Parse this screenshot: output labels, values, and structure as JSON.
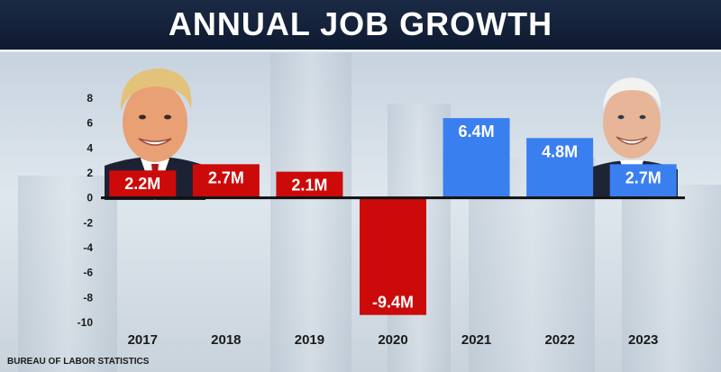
{
  "title": "ANNUAL JOB GROWTH",
  "source": "BUREAU OF LABOR STATISTICS",
  "colors": {
    "red": "#cc0a0a",
    "blue": "#3a7ff0",
    "header": "#14223b"
  },
  "icons": [
    "trump-portrait-icon",
    "biden-portrait-icon"
  ],
  "chart_data": {
    "type": "bar",
    "title": "ANNUAL JOB GROWTH",
    "categories": [
      "2017",
      "2018",
      "2019",
      "2020",
      "2021",
      "2022",
      "2023"
    ],
    "values": [
      2.2,
      2.7,
      2.1,
      -9.4,
      6.4,
      4.8,
      2.7
    ],
    "labels": [
      "2.2M",
      "2.7M",
      "2.1M",
      "-9.4M",
      "6.4M",
      "4.8M",
      "2.7M"
    ],
    "bar_colors": [
      "#cc0a0a",
      "#cc0a0a",
      "#cc0a0a",
      "#cc0a0a",
      "#3a7ff0",
      "#3a7ff0",
      "#3a7ff0"
    ],
    "ylim": [
      -10,
      8
    ],
    "yticks": [
      "8",
      "6",
      "4",
      "2",
      "0",
      "-2",
      "-4",
      "-6",
      "-8",
      "-10"
    ],
    "xlabel": "",
    "ylabel": "",
    "grid": false,
    "legend": "none"
  }
}
